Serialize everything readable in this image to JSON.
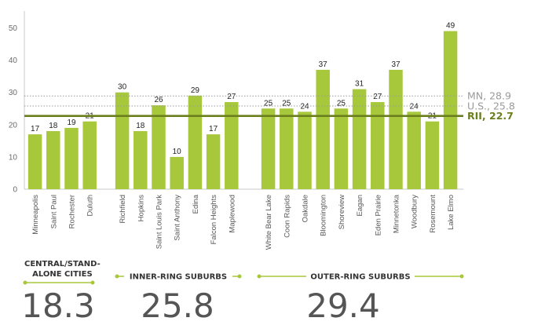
{
  "chart_data": {
    "type": "bar",
    "ylim": [
      0,
      55
    ],
    "yticks": [
      0,
      10,
      20,
      30,
      40,
      50
    ],
    "categories": [
      "Minneapolis",
      "Saint Paul",
      "Rochester",
      "Duluth",
      "Richfield",
      "Hopkins",
      "Saint Louis Park",
      "Saint Anthony",
      "Edina",
      "Falcon Heights",
      "Maplewood",
      "White Bear Lake",
      "Coon Rapids",
      "Oakdale",
      "Bloomington",
      "Shoreview",
      "Eagan",
      "Eden Prairie",
      "Minnetonka",
      "Woodbury",
      "Rosemount",
      "Lake Elmo"
    ],
    "values": [
      17,
      18,
      19,
      21,
      30,
      18,
      26,
      10,
      29,
      17,
      27,
      25,
      25,
      24,
      37,
      25,
      31,
      27,
      37,
      24,
      21,
      49
    ],
    "value_labels": [
      "17",
      "18",
      "19",
      "21",
      "30",
      "18",
      "26",
      "10",
      "29",
      "17",
      "27",
      "25",
      "25",
      "24",
      "37",
      "25",
      "31",
      "27",
      "37",
      "24",
      "21",
      "49"
    ],
    "groups": [
      {
        "label_lines": [
          "CENTRAL/STAND-",
          "ALONE CITIES"
        ],
        "value": "18.3",
        "start": 0,
        "end": 3
      },
      {
        "label_lines": [
          "INNER-RING SUBURBS"
        ],
        "value": "25.8",
        "start": 4,
        "end": 10
      },
      {
        "label_lines": [
          "OUTER-RING SUBURBS"
        ],
        "value": "29.4",
        "start": 11,
        "end": 21
      }
    ],
    "reference_lines": [
      {
        "label": "MN, 28.9",
        "value": 28.9,
        "style": "dotted",
        "color": "#9a9a9a"
      },
      {
        "label": "U.S., 25.8",
        "value": 25.8,
        "style": "dotted",
        "color": "#9a9a9a"
      },
      {
        "label": "RII, 22.7",
        "value": 22.7,
        "style": "solid",
        "color": "#6b7f1f"
      }
    ],
    "colors": {
      "bar": "#a8c83c",
      "axis": "#c9c9c9",
      "group_rule": "#a8c83c"
    },
    "grid": false,
    "legend": "none"
  }
}
